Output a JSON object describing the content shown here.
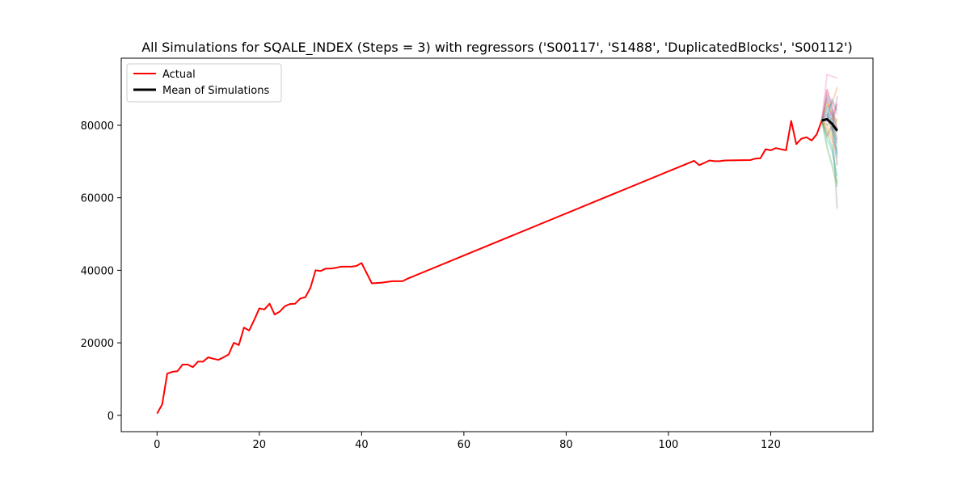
{
  "chart_data": {
    "type": "line",
    "title": "All Simulations for SQALE_INDEX (Steps = 3) with regressors ('S00117', 'S1488', 'DuplicatedBlocks', 'S00112')",
    "xlabel": "",
    "ylabel": "",
    "xlim": [
      -7,
      140
    ],
    "ylim": [
      -4500,
      98500
    ],
    "xticks": [
      0,
      20,
      40,
      60,
      80,
      100,
      120
    ],
    "yticks": [
      0,
      20000,
      40000,
      60000,
      80000
    ],
    "legend": {
      "position": "upper left",
      "entries": [
        "Actual",
        "Mean of Simulations"
      ]
    },
    "grid": false,
    "colors": {
      "actual": "#ff0000",
      "mean": "#000000",
      "simulations": [
        "#1f77b4",
        "#ff7f0e",
        "#2ca02c",
        "#d62728",
        "#9467bd",
        "#8c564b",
        "#e377c2",
        "#7f7f7f",
        "#bcbd22",
        "#17becf"
      ]
    },
    "series": [
      {
        "name": "Actual",
        "x": [
          0,
          1,
          2,
          3,
          4,
          5,
          6,
          7,
          8,
          9,
          10,
          11,
          12,
          13,
          14,
          15,
          16,
          17,
          18,
          19,
          20,
          21,
          22,
          23,
          24,
          25,
          26,
          27,
          28,
          29,
          30,
          31,
          32,
          33,
          34,
          35,
          36,
          37,
          38,
          39,
          40,
          42,
          44,
          46,
          48,
          49,
          105,
          106,
          107,
          108,
          109,
          110,
          111,
          116,
          117,
          118,
          119,
          120,
          121,
          122,
          123,
          124,
          125,
          126,
          127,
          128,
          129,
          130
        ],
        "y": [
          500,
          3000,
          11500,
          12000,
          12200,
          14000,
          14000,
          13300,
          14800,
          14800,
          16000,
          15600,
          15300,
          16000,
          16800,
          20000,
          19400,
          24200,
          23400,
          26300,
          29500,
          29200,
          30800,
          27800,
          28600,
          30100,
          30700,
          30800,
          32200,
          32600,
          35200,
          40000,
          39800,
          40500,
          40500,
          40700,
          41000,
          41000,
          41000,
          41200,
          42000,
          36400,
          36600,
          37000,
          37000,
          37700,
          70200,
          69000,
          69600,
          70300,
          70100,
          70100,
          70300,
          70400,
          70800,
          70900,
          73400,
          73100,
          73700,
          73400,
          73100,
          81200,
          74800,
          76300,
          76700,
          75800,
          77500,
          81300
        ]
      },
      {
        "name": "Mean of Simulations",
        "x": [
          130,
          131,
          132,
          133
        ],
        "y": [
          81300,
          81700,
          80400,
          78500
        ]
      }
    ],
    "simulations": [
      {
        "x": [
          130,
          131,
          132,
          133
        ],
        "y": [
          81300,
          88000,
          84000,
          72000
        ]
      },
      {
        "x": [
          130,
          131,
          132,
          133
        ],
        "y": [
          81300,
          85000,
          86000,
          90500
        ]
      },
      {
        "x": [
          130,
          131,
          132,
          133
        ],
        "y": [
          81300,
          78000,
          74000,
          64000
        ]
      },
      {
        "x": [
          130,
          131,
          132,
          133
        ],
        "y": [
          81300,
          90000,
          85000,
          79000
        ]
      },
      {
        "x": [
          130,
          131,
          132,
          133
        ],
        "y": [
          81300,
          83000,
          78000,
          88000
        ]
      },
      {
        "x": [
          130,
          131,
          132,
          133
        ],
        "y": [
          81300,
          80000,
          82000,
          76000
        ]
      },
      {
        "x": [
          130,
          131,
          132,
          133
        ],
        "y": [
          81300,
          94000,
          93500,
          93000
        ]
      },
      {
        "x": [
          130,
          131,
          132,
          133
        ],
        "y": [
          81300,
          84000,
          80000,
          57000
        ]
      },
      {
        "x": [
          130,
          131,
          132,
          133
        ],
        "y": [
          81300,
          86000,
          83000,
          81000
        ]
      },
      {
        "x": [
          130,
          131,
          132,
          133
        ],
        "y": [
          81300,
          76000,
          73000,
          66000
        ]
      },
      {
        "x": [
          130,
          131,
          132,
          133
        ],
        "y": [
          81300,
          82000,
          87000,
          84000
        ]
      },
      {
        "x": [
          130,
          131,
          132,
          133
        ],
        "y": [
          81300,
          79000,
          76000,
          73000
        ]
      },
      {
        "x": [
          130,
          131,
          132,
          133
        ],
        "y": [
          81300,
          74000,
          69000,
          63000
        ]
      },
      {
        "x": [
          130,
          131,
          132,
          133
        ],
        "y": [
          81300,
          87000,
          82000,
          86000
        ]
      },
      {
        "x": [
          130,
          131,
          132,
          133
        ],
        "y": [
          81300,
          81000,
          84000,
          78000
        ]
      },
      {
        "x": [
          130,
          131,
          132,
          133
        ],
        "y": [
          81300,
          77000,
          80000,
          69000
        ]
      },
      {
        "x": [
          130,
          131,
          132,
          133
        ],
        "y": [
          81300,
          89000,
          86000,
          83000
        ]
      },
      {
        "x": [
          130,
          131,
          132,
          133
        ],
        "y": [
          81300,
          83000,
          79000,
          75000
        ]
      },
      {
        "x": [
          130,
          131,
          132,
          133
        ],
        "y": [
          81300,
          80000,
          77000,
          82000
        ]
      },
      {
        "x": [
          130,
          131,
          132,
          133
        ],
        "y": [
          81300,
          85000,
          81000,
          71000
        ]
      }
    ]
  }
}
